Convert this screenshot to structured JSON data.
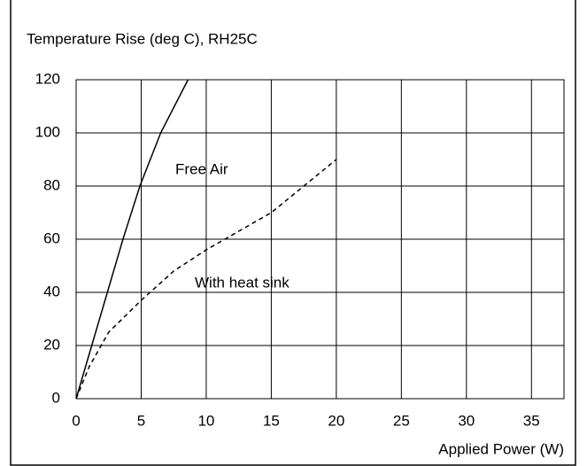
{
  "chart_data": {
    "type": "line",
    "title": "Temperature Rise (deg C), RH25C",
    "x_label": "Applied Power (W)",
    "xlim": [
      0,
      37.5
    ],
    "xticks": [
      0,
      5,
      10,
      15,
      20,
      25,
      30,
      35
    ],
    "ylim": [
      0,
      120
    ],
    "yticks": [
      0,
      20,
      40,
      60,
      80,
      100,
      120
    ],
    "grid": true,
    "series": [
      {
        "name": "Free Air",
        "color": "#000000",
        "line_style": "solid",
        "x": [
          0,
          1.2,
          2.4,
          3.6,
          4.9,
          6.5,
          8.6
        ],
        "values": [
          0,
          20,
          40,
          60,
          80,
          100,
          120
        ]
      },
      {
        "name": "With heat sink",
        "color": "#000000",
        "line_style": "dashed",
        "x": [
          0,
          1,
          2.5,
          5,
          7.5,
          10,
          12.5,
          15,
          17.5,
          20
        ],
        "values": [
          0,
          12,
          25,
          37,
          48,
          56,
          63,
          70,
          80,
          90
        ]
      }
    ]
  }
}
